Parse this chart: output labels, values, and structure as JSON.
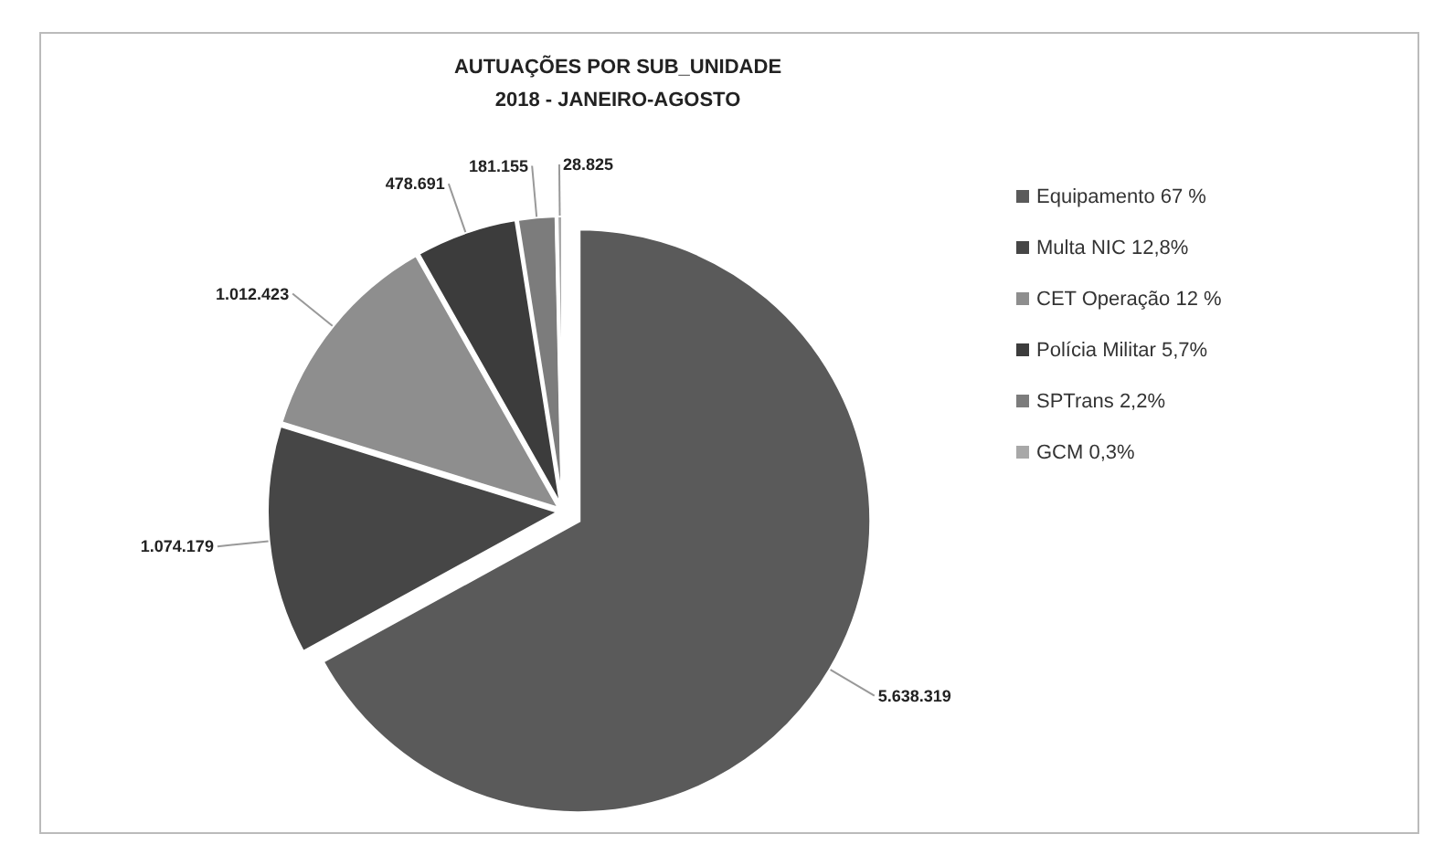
{
  "chart_data": {
    "type": "pie",
    "title": "AUTUAÇÕES POR SUB_UNIDADE",
    "subtitle": "2018 - JANEIRO-AGOSTO",
    "categories": [
      "Equipamento 67 %",
      "Multa NIC 12,8%",
      "CET Operação 12 %",
      "Polícia Militar 5,7%",
      "SPTrans 2,2%",
      "GCM 0,3%"
    ],
    "values": [
      5638319,
      1074179,
      1012423,
      478691,
      181155,
      28825
    ],
    "colors": [
      "#5a5a5a",
      "#464646",
      "#8e8e8e",
      "#3c3c3c",
      "#7c7c7c",
      "#a8a8a8"
    ],
    "value_labels": [
      "5.638.319",
      "1.074.179",
      "1.012.423",
      "478.691",
      "181.155",
      "28.825"
    ],
    "legend": "right"
  }
}
